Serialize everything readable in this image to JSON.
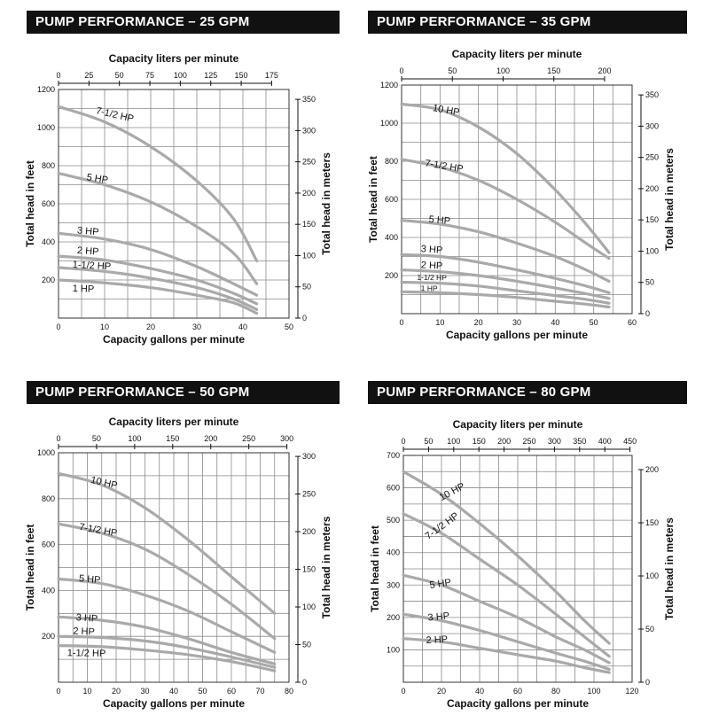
{
  "chart_data": [
    {
      "type": "line",
      "title": "PUMP PERFORMANCE – 25 GPM",
      "xlabel": "Capacity gallons per minute",
      "x2label": "Capacity liters per minute",
      "ylabel": "Total head in feet",
      "y2label": "Total head in meters",
      "xlim": [
        0,
        50
      ],
      "ylim": [
        0,
        1200
      ],
      "xticks": [
        0,
        10,
        20,
        30,
        40,
        50
      ],
      "x2ticks": [
        0,
        25,
        50,
        75,
        100,
        125,
        150,
        175
      ],
      "x2_per_x": 3.785,
      "yticks": [
        200,
        400,
        600,
        800,
        1000,
        1200
      ],
      "y2ticks": [
        0,
        50,
        100,
        150,
        200,
        250,
        300,
        350
      ],
      "y2_per_y": 0.3048,
      "grid": true,
      "series": [
        {
          "name": "7-1/2 HP",
          "label_at": [
            8,
            1075
          ],
          "rot": 13,
          "x": [
            0,
            10,
            20,
            30,
            38,
            43
          ],
          "y": [
            1110,
            1030,
            900,
            720,
            520,
            300
          ]
        },
        {
          "name": "5 HP",
          "label_at": [
            6,
            725
          ],
          "rot": 9,
          "x": [
            0,
            10,
            20,
            30,
            38,
            43
          ],
          "y": [
            760,
            700,
            610,
            480,
            340,
            180
          ]
        },
        {
          "name": "3 HP",
          "label_at": [
            4,
            445
          ],
          "rot": 5,
          "x": [
            0,
            10,
            20,
            30,
            38,
            43
          ],
          "y": [
            445,
            415,
            360,
            270,
            180,
            120
          ]
        },
        {
          "name": "2 HP",
          "label_at": [
            4,
            340
          ],
          "rot": 4,
          "x": [
            0,
            10,
            20,
            30,
            38,
            43
          ],
          "y": [
            325,
            305,
            260,
            200,
            130,
            75
          ]
        },
        {
          "name": "1-1/2 HP",
          "label_at": [
            3,
            265
          ],
          "rot": 3,
          "x": [
            0,
            10,
            20,
            30,
            38,
            43
          ],
          "y": [
            265,
            245,
            210,
            160,
            100,
            45
          ]
        },
        {
          "name": "1 HP",
          "label_at": [
            3,
            140
          ],
          "rot": 2,
          "x": [
            0,
            10,
            20,
            30,
            38,
            43
          ],
          "y": [
            200,
            185,
            160,
            120,
            80,
            25
          ]
        }
      ]
    },
    {
      "type": "line",
      "title": "PUMP PERFORMANCE – 35 GPM",
      "xlabel": "Capacity gallons per minute",
      "x2label": "Capacity liters per minute",
      "ylabel": "Total head in feet",
      "y2label": "Total head in meters",
      "xlim": [
        0,
        60
      ],
      "ylim": [
        0,
        1200
      ],
      "xticks": [
        0,
        10,
        20,
        30,
        40,
        50,
        60
      ],
      "x2ticks": [
        0,
        50,
        100,
        150,
        200
      ],
      "x2_per_x": 3.785,
      "yticks": [
        200,
        400,
        600,
        800,
        1000,
        1200
      ],
      "y2ticks": [
        0,
        50,
        100,
        150,
        200,
        250,
        300,
        350
      ],
      "y2_per_y": 0.3048,
      "grid": true,
      "series": [
        {
          "name": "10 HP",
          "label_at": [
            8,
            1065
          ],
          "rot": 10,
          "x": [
            0,
            10,
            20,
            30,
            40,
            48,
            54
          ],
          "y": [
            1100,
            1070,
            980,
            840,
            650,
            470,
            320
          ]
        },
        {
          "name": "7-1/2 HP",
          "label_at": [
            6,
            775
          ],
          "rot": 9,
          "x": [
            0,
            10,
            20,
            30,
            40,
            48,
            54
          ],
          "y": [
            810,
            770,
            700,
            600,
            480,
            370,
            290
          ]
        },
        {
          "name": "5 HP",
          "label_at": [
            7,
            480
          ],
          "rot": 5,
          "x": [
            0,
            10,
            20,
            30,
            40,
            48,
            54
          ],
          "y": [
            490,
            470,
            430,
            370,
            300,
            230,
            170
          ]
        },
        {
          "name": "3 HP",
          "label_at": [
            5,
            325
          ],
          "rot": 4,
          "x": [
            0,
            10,
            20,
            30,
            40,
            48,
            54
          ],
          "y": [
            310,
            300,
            270,
            230,
            185,
            145,
            110
          ]
        },
        {
          "name": "2 HP",
          "label_at": [
            5,
            240
          ],
          "rot": 3,
          "x": [
            0,
            10,
            20,
            30,
            40,
            48,
            54
          ],
          "y": [
            230,
            220,
            200,
            170,
            135,
            105,
            80
          ]
        },
        {
          "name": "1-1/2 HP",
          "label_at": [
            4,
            178
          ],
          "rot": 1,
          "x": [
            0,
            10,
            20,
            30,
            40,
            48,
            54
          ],
          "y": [
            165,
            160,
            145,
            120,
            95,
            75,
            55
          ]
        },
        {
          "name": "1 HP",
          "label_at": [
            5,
            120
          ],
          "rot": 1,
          "x": [
            0,
            10,
            20,
            30,
            40,
            48,
            54
          ],
          "y": [
            115,
            110,
            100,
            85,
            65,
            50,
            35
          ]
        }
      ]
    },
    {
      "type": "line",
      "title": "PUMP PERFORMANCE – 50 GPM",
      "xlabel": "Capacity gallons per minute",
      "x2label": "Capacity liters per minute",
      "ylabel": "Total head in feet",
      "y2label": "Total head in meters",
      "xlim": [
        0,
        80
      ],
      "ylim": [
        0,
        1000
      ],
      "xticks": [
        0,
        10,
        20,
        30,
        40,
        50,
        60,
        70,
        80
      ],
      "x2ticks": [
        0,
        50,
        100,
        150,
        200,
        250,
        300
      ],
      "x2_per_x": 3.785,
      "yticks": [
        200,
        400,
        600,
        800,
        1000
      ],
      "y2ticks": [
        0,
        50,
        100,
        150,
        200,
        250,
        300
      ],
      "y2_per_y": 0.3048,
      "grid": true,
      "series": [
        {
          "name": "10 HP",
          "label_at": [
            11,
            870
          ],
          "rot": 13,
          "x": [
            0,
            15,
            30,
            45,
            60,
            75
          ],
          "y": [
            910,
            860,
            760,
            620,
            460,
            300
          ]
        },
        {
          "name": "7-1/2 HP",
          "label_at": [
            7,
            665
          ],
          "rot": 10,
          "x": [
            0,
            15,
            30,
            45,
            60,
            75
          ],
          "y": [
            690,
            650,
            580,
            470,
            340,
            190
          ]
        },
        {
          "name": "5 HP",
          "label_at": [
            7,
            440
          ],
          "rot": 5,
          "x": [
            0,
            15,
            30,
            45,
            60,
            75
          ],
          "y": [
            450,
            430,
            380,
            310,
            220,
            130
          ]
        },
        {
          "name": "3 HP",
          "label_at": [
            6,
            270
          ],
          "rot": 4,
          "x": [
            0,
            15,
            30,
            45,
            60,
            75
          ],
          "y": [
            285,
            270,
            240,
            190,
            130,
            80
          ]
        },
        {
          "name": "2 HP",
          "label_at": [
            5,
            210
          ],
          "rot": 2,
          "x": [
            0,
            15,
            30,
            45,
            60,
            75
          ],
          "y": [
            200,
            195,
            180,
            150,
            110,
            65
          ]
        },
        {
          "name": "1-1/2 HP",
          "label_at": [
            3,
            115
          ],
          "rot": 1,
          "x": [
            0,
            15,
            30,
            45,
            60,
            75
          ],
          "y": [
            160,
            155,
            140,
            120,
            90,
            50
          ]
        }
      ]
    },
    {
      "type": "line",
      "title": "PUMP PERFORMANCE – 80 GPM",
      "xlabel": "Capacity gallons per minute",
      "x2label": "Capacity liters per minute",
      "ylabel": "Total head in feet",
      "y2label": "Total head in meters",
      "xlim": [
        0,
        120
      ],
      "ylim": [
        0,
        700
      ],
      "xticks": [
        0,
        20,
        40,
        60,
        80,
        100,
        120
      ],
      "x2ticks": [
        0,
        50,
        100,
        150,
        200,
        250,
        300,
        350,
        400,
        450
      ],
      "x2_per_x": 3.785,
      "yticks": [
        100,
        200,
        300,
        400,
        500,
        600,
        700
      ],
      "y2ticks": [
        0,
        50,
        100,
        150,
        200
      ],
      "y2_per_y": 0.3048,
      "grid": true,
      "series": [
        {
          "name": "10 HP",
          "label_at": [
            20,
            560
          ],
          "rot": -28,
          "x": [
            0,
            20,
            40,
            60,
            80,
            95,
            108
          ],
          "y": [
            650,
            580,
            490,
            390,
            280,
            190,
            120
          ]
        },
        {
          "name": "7-1/2 HP",
          "label_at": [
            13,
            440
          ],
          "rot": -36,
          "x": [
            0,
            20,
            40,
            60,
            80,
            95,
            108
          ],
          "y": [
            520,
            460,
            380,
            300,
            210,
            140,
            80
          ]
        },
        {
          "name": "5 HP",
          "label_at": [
            14,
            290
          ],
          "rot": -8,
          "x": [
            0,
            20,
            40,
            60,
            80,
            95,
            108
          ],
          "y": [
            330,
            300,
            250,
            200,
            140,
            100,
            60
          ]
        },
        {
          "name": "3 HP",
          "label_at": [
            13,
            190
          ],
          "rot": -5,
          "x": [
            0,
            20,
            40,
            60,
            80,
            95,
            108
          ],
          "y": [
            210,
            190,
            160,
            125,
            90,
            65,
            40
          ]
        },
        {
          "name": "2 HP",
          "label_at": [
            12,
            120
          ],
          "rot": -3,
          "x": [
            0,
            20,
            40,
            60,
            80,
            95,
            108
          ],
          "y": [
            135,
            125,
            105,
            85,
            65,
            45,
            30
          ]
        }
      ]
    }
  ]
}
